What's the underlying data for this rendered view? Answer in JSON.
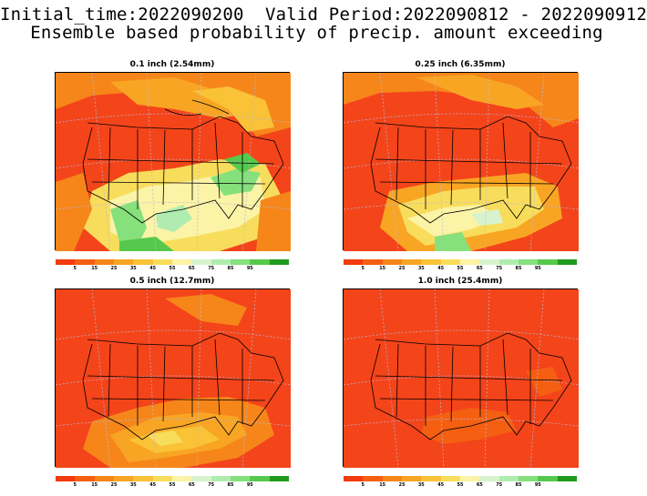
{
  "header": {
    "line1": "Initial_time:2022090200  Valid Period:2022090812 - 2022090912",
    "line2": "Ensemble based probability of precip. amount exceeding"
  },
  "panels": [
    {
      "title": "0.1 inch (2.54mm)"
    },
    {
      "title": "0.25 inch (6.35mm)"
    },
    {
      "title": "0.5 inch (12.7mm)"
    },
    {
      "title": "1.0 inch (25.4mm)"
    }
  ],
  "colorbar": {
    "colors": [
      "#f23b0e",
      "#f45f12",
      "#f6861a",
      "#f8a524",
      "#f9c237",
      "#f8dd5c",
      "#fbf3a6",
      "#d7f3cd",
      "#b0ecb0",
      "#86e07c",
      "#56c94c",
      "#1f9b1f"
    ],
    "labels": [
      "5",
      "15",
      "25",
      "35",
      "45",
      "55",
      "65",
      "75",
      "85",
      "95"
    ]
  }
}
